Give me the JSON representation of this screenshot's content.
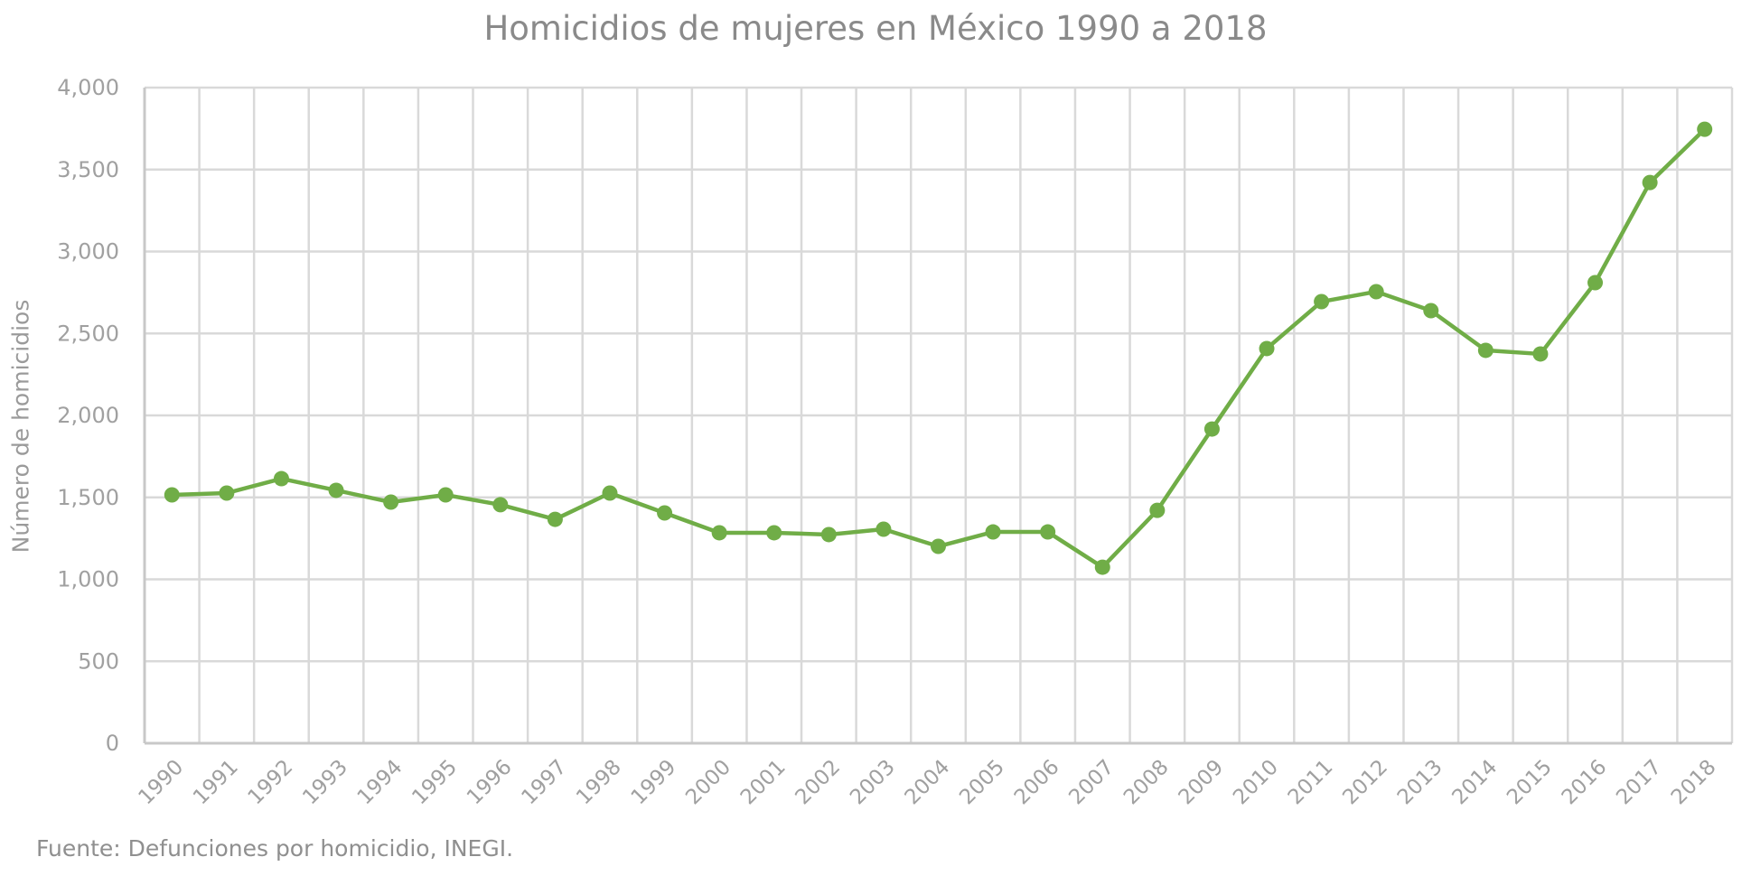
{
  "chart_data": {
    "type": "line",
    "title": "Homicidios de mujeres en México 1990 a 2018",
    "xlabel": "",
    "ylabel": "Número de homicidios",
    "source": "Fuente: Defunciones por homicidio, INEGI.",
    "categories": [
      "1990",
      "1991",
      "1992",
      "1993",
      "1994",
      "1995",
      "1996",
      "1997",
      "1998",
      "1999",
      "2000",
      "2001",
      "2002",
      "2003",
      "2004",
      "2005",
      "2006",
      "2007",
      "2008",
      "2009",
      "2010",
      "2011",
      "2012",
      "2013",
      "2014",
      "2015",
      "2016",
      "2017",
      "2018"
    ],
    "series": [
      {
        "name": "Homicidios de mujeres",
        "color": "#70AD47",
        "values": [
          1515,
          1526,
          1614,
          1543,
          1471,
          1515,
          1455,
          1366,
          1526,
          1405,
          1284,
          1284,
          1273,
          1306,
          1201,
          1289,
          1289,
          1074,
          1421,
          1917,
          2408,
          2694,
          2755,
          2639,
          2397,
          2375,
          2810,
          3421,
          3746
        ]
      }
    ],
    "ylim": [
      0,
      4000
    ],
    "yticks": [
      0,
      500,
      1000,
      1500,
      2000,
      2500,
      3000,
      3500,
      4000
    ],
    "ytick_labels": [
      "0",
      "500",
      "1,000",
      "1,500",
      "2,000",
      "2,500",
      "3,000",
      "3,500",
      "4,000"
    ],
    "grid": true,
    "legend": "none",
    "markers": true
  },
  "colors": {
    "line": "#70AD47",
    "grid": "#d9d9d9",
    "axis_text": "#a0a0a0",
    "title": "#8a8a8a"
  }
}
